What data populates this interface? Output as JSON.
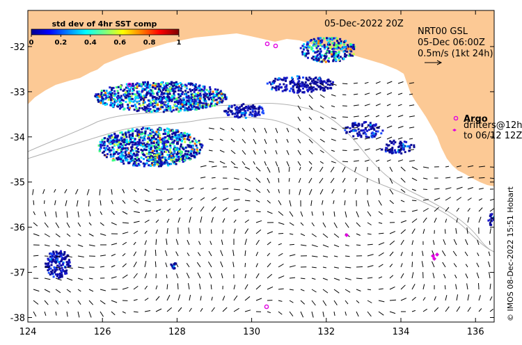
{
  "map": {
    "lon_range": [
      124,
      136.5
    ],
    "lat_range": [
      -38.1,
      -31.2
    ],
    "lon_ticks": [
      "124",
      "126",
      "128",
      "130",
      "132",
      "134",
      "136"
    ],
    "lat_ticks": [
      "-32",
      "-33",
      "-34",
      "-35",
      "-36",
      "-37",
      "-38"
    ],
    "colors": {
      "land": "#fcc995",
      "sst_low": "#1a1aa8",
      "argo": "#e000e0",
      "bathymetry": "#b0b0b0",
      "arrows": "#000000"
    }
  },
  "colorbar": {
    "title": "std dev of 4hr SST comp",
    "ticks": [
      "0",
      "0.2",
      "0.4",
      "0.6",
      "0.8",
      "1"
    ]
  },
  "header": {
    "date": "05-Dec-2022 20Z",
    "product": "NRT00 GSL",
    "time": "05-Dec 06:00Z",
    "scale": "0.5m/s (1kt 24h)"
  },
  "legend": {
    "argo": "Argo",
    "drifters": "drifters@12h",
    "drifters_to": "to 06/12 12Z"
  },
  "credit": "© IMOS 08-Dec-2022 15:51 Hobart"
}
